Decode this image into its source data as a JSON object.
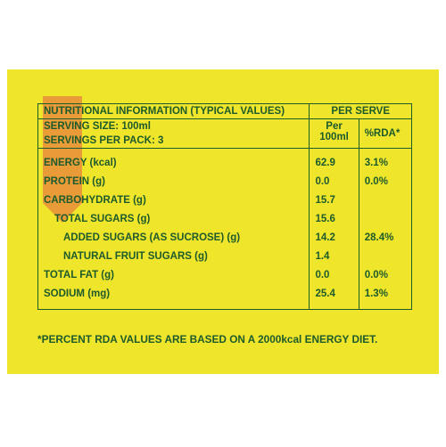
{
  "header": {
    "title": "NUTRITIONAL INFORMATION (TYPICAL VALUES)",
    "per_serve": "PER SERVE",
    "serving_size": "SERVING SIZE: 100ml",
    "servings_per_pack": "SERVINGS PER PACK: 3",
    "per_100ml": "Per 100ml",
    "rda": "%RDA*"
  },
  "table": {
    "rows": [
      [
        "ENERGY (kcal)",
        "62.9",
        "3.1%"
      ],
      [
        "PROTEIN (g)",
        "0.0",
        "0.0%"
      ],
      [
        "CARBOHYDRATE (g)",
        "15.7"
      ],
      [
        "TOTAL SUGARS (g)",
        "15.6"
      ],
      [
        "ADDED SUGARS (AS SUCROSE) (g)",
        "14.2",
        "28.4%"
      ],
      [
        "NATURAL FRUIT SUGARS (g)",
        "1.4"
      ],
      [
        "TOTAL FAT (g)",
        "0.0",
        "0.0%"
      ],
      [
        "SODIUM (mg)",
        "25.4",
        "1.3%"
      ]
    ]
  },
  "footnote": "*PERCENT RDA VALUES ARE BASED ON A 2000kcal ENERGY DIET."
}
